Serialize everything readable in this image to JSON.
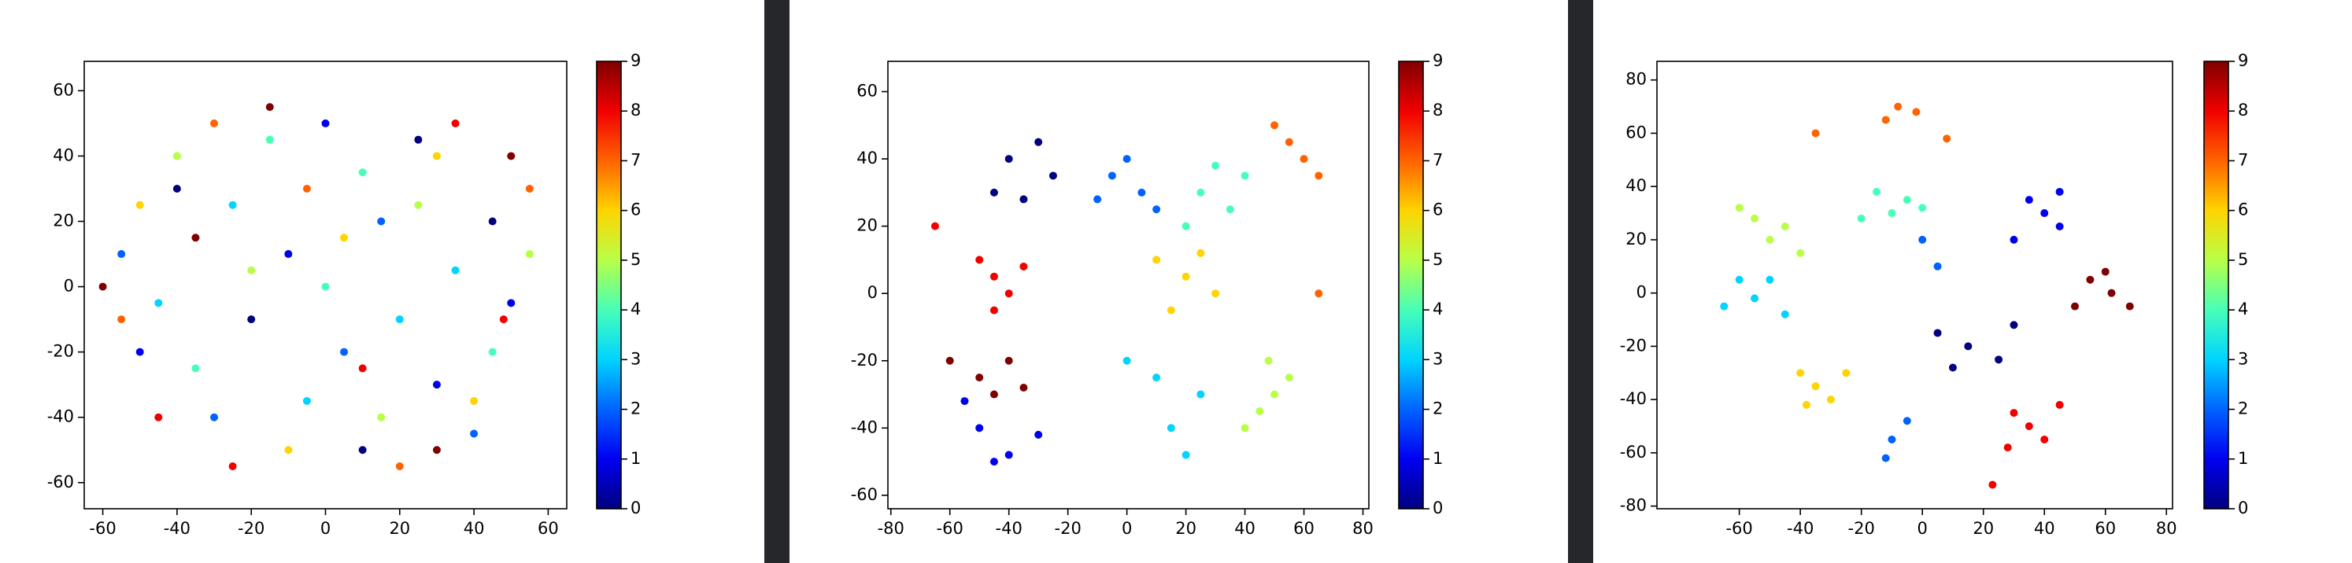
{
  "chart_data": [
    {
      "type": "scatter",
      "xlim": [
        -65,
        65
      ],
      "ylim": [
        -68,
        69
      ],
      "xticks": [
        -60,
        -40,
        -20,
        0,
        20,
        40,
        60
      ],
      "yticks": [
        -60,
        -40,
        -20,
        0,
        20,
        40,
        60
      ],
      "colorbar": {
        "lim": [
          0,
          9
        ],
        "ticks": [
          0,
          1,
          2,
          3,
          4,
          5,
          6,
          7,
          8,
          9
        ]
      },
      "series": [
        {
          "color": "#000080",
          "x": [
            -40,
            10,
            45,
            -20,
            25
          ],
          "y": [
            30,
            -50,
            20,
            -10,
            45
          ]
        },
        {
          "color": "#0000f1",
          "x": [
            -50,
            30,
            0,
            -10,
            50
          ],
          "y": [
            -20,
            -30,
            50,
            10,
            -5
          ]
        },
        {
          "color": "#0063ff",
          "x": [
            -30,
            15,
            -55,
            40,
            5
          ],
          "y": [
            -40,
            20,
            10,
            -45,
            -20
          ]
        },
        {
          "color": "#00d4ff",
          "x": [
            -25,
            35,
            -5,
            20,
            -45
          ],
          "y": [
            25,
            5,
            -35,
            -10,
            -5
          ]
        },
        {
          "color": "#47ffb8",
          "x": [
            10,
            -35,
            45,
            -15,
            0
          ],
          "y": [
            35,
            -25,
            -20,
            45,
            0
          ]
        },
        {
          "color": "#b8ff47",
          "x": [
            -20,
            25,
            -40,
            15,
            55
          ],
          "y": [
            5,
            25,
            40,
            -40,
            10
          ]
        },
        {
          "color": "#ffd400",
          "x": [
            30,
            -10,
            -50,
            5,
            40
          ],
          "y": [
            40,
            -50,
            25,
            15,
            -35
          ]
        },
        {
          "color": "#ff6300",
          "x": [
            -30,
            20,
            55,
            -55,
            -5
          ],
          "y": [
            50,
            -55,
            30,
            -10,
            30
          ]
        },
        {
          "color": "#f10000",
          "x": [
            -45,
            35,
            10,
            -25,
            48
          ],
          "y": [
            -40,
            50,
            -25,
            -55,
            -10
          ]
        },
        {
          "color": "#800000",
          "x": [
            -15,
            50,
            -60,
            30,
            -35
          ],
          "y": [
            55,
            40,
            0,
            -50,
            15
          ]
        }
      ]
    },
    {
      "type": "scatter",
      "xlim": [
        -81,
        82
      ],
      "ylim": [
        -64,
        69
      ],
      "xticks": [
        -80,
        -60,
        -40,
        -20,
        0,
        20,
        40,
        60,
        80
      ],
      "yticks": [
        -60,
        -40,
        -20,
        0,
        20,
        40,
        60
      ],
      "colorbar": {
        "lim": [
          0,
          9
        ],
        "ticks": [
          0,
          1,
          2,
          3,
          4,
          5,
          6,
          7,
          8,
          9
        ]
      },
      "series": [
        {
          "color": "#000080",
          "x": [
            -40,
            -30,
            -45,
            -25,
            -35
          ],
          "y": [
            40,
            45,
            30,
            35,
            28
          ]
        },
        {
          "color": "#0000f1",
          "x": [
            -50,
            -40,
            -55,
            -30,
            -45
          ],
          "y": [
            -40,
            -48,
            -32,
            -42,
            -50
          ]
        },
        {
          "color": "#0063ff",
          "x": [
            -5,
            5,
            0,
            10,
            -10
          ],
          "y": [
            35,
            30,
            40,
            25,
            28
          ]
        },
        {
          "color": "#00d4ff",
          "x": [
            10,
            15,
            20,
            0,
            25
          ],
          "y": [
            -25,
            -40,
            -48,
            -20,
            -30
          ]
        },
        {
          "color": "#47ffb8",
          "x": [
            25,
            35,
            30,
            20,
            40
          ],
          "y": [
            30,
            25,
            38,
            20,
            35
          ]
        },
        {
          "color": "#b8ff47",
          "x": [
            50,
            45,
            55,
            48,
            40
          ],
          "y": [
            -30,
            -35,
            -25,
            -20,
            -40
          ]
        },
        {
          "color": "#ffd400",
          "x": [
            20,
            10,
            30,
            15,
            25
          ],
          "y": [
            5,
            10,
            0,
            -5,
            12
          ]
        },
        {
          "color": "#ff6300",
          "x": [
            60,
            65,
            55,
            65,
            50
          ],
          "y": [
            40,
            35,
            45,
            0,
            50
          ]
        },
        {
          "color": "#f10000",
          "x": [
            -45,
            -40,
            -50,
            -35,
            -45,
            -65
          ],
          "y": [
            5,
            0,
            10,
            8,
            -5,
            20
          ]
        },
        {
          "color": "#800000",
          "x": [
            -50,
            -40,
            -60,
            -45,
            -35
          ],
          "y": [
            -25,
            -20,
            -20,
            -30,
            -28
          ]
        }
      ]
    },
    {
      "type": "scatter",
      "xlim": [
        -87,
        82
      ],
      "ylim": [
        -81,
        87
      ],
      "xticks": [
        -60,
        -40,
        -20,
        0,
        20,
        40,
        60,
        80
      ],
      "yticks": [
        -80,
        -60,
        -40,
        -20,
        0,
        20,
        40,
        60,
        80
      ],
      "colorbar": {
        "lim": [
          0,
          9
        ],
        "ticks": [
          0,
          1,
          2,
          3,
          4,
          5,
          6,
          7,
          8,
          9
        ]
      },
      "series": [
        {
          "color": "#000080",
          "x": [
            15,
            5,
            25,
            10,
            30
          ],
          "y": [
            -20,
            -15,
            -25,
            -28,
            -12
          ]
        },
        {
          "color": "#0000f1",
          "x": [
            40,
            35,
            45,
            30,
            45
          ],
          "y": [
            30,
            35,
            25,
            20,
            38
          ]
        },
        {
          "color": "#0063ff",
          "x": [
            -10,
            -12,
            -5,
            5,
            0
          ],
          "y": [
            -55,
            -62,
            -48,
            10,
            20
          ]
        },
        {
          "color": "#00d4ff",
          "x": [
            -55,
            -60,
            -45,
            -50,
            -65
          ],
          "y": [
            -2,
            5,
            -8,
            5,
            -5
          ]
        },
        {
          "color": "#47ffb8",
          "x": [
            -10,
            -5,
            -20,
            0,
            -15
          ],
          "y": [
            30,
            35,
            28,
            32,
            38
          ]
        },
        {
          "color": "#b8ff47",
          "x": [
            -55,
            -50,
            -60,
            -45,
            -40
          ],
          "y": [
            28,
            20,
            32,
            25,
            15
          ]
        },
        {
          "color": "#ffd400",
          "x": [
            -35,
            -40,
            -30,
            -25,
            -38
          ],
          "y": [
            -35,
            -30,
            -40,
            -30,
            -42
          ]
        },
        {
          "color": "#ff6300",
          "x": [
            -8,
            -12,
            -2,
            -35,
            8
          ],
          "y": [
            70,
            65,
            68,
            60,
            58
          ]
        },
        {
          "color": "#f10000",
          "x": [
            35,
            30,
            40,
            28,
            45,
            23
          ],
          "y": [
            -50,
            -45,
            -55,
            -58,
            -42,
            -72
          ]
        },
        {
          "color": "#800000",
          "x": [
            62,
            55,
            68,
            60,
            50
          ],
          "y": [
            0,
            5,
            -5,
            8,
            -5
          ]
        }
      ]
    }
  ]
}
